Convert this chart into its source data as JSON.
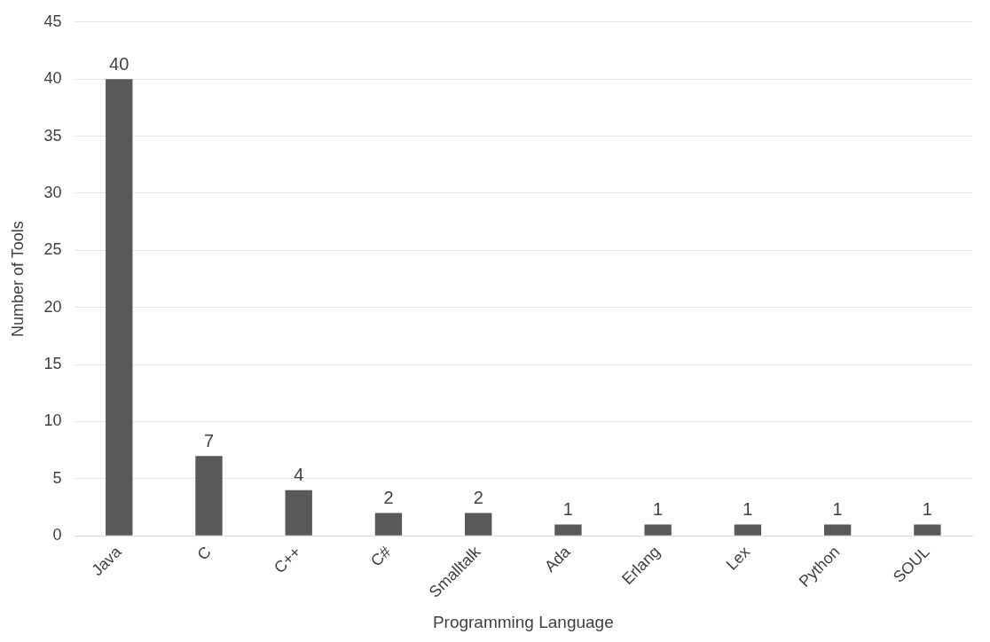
{
  "chart_data": {
    "type": "bar",
    "xlabel": "Programming Language",
    "ylabel": "Number of Tools",
    "categories": [
      "Java",
      "C",
      "C++",
      "C#",
      "Smalltalk",
      "Ada",
      "Erlang",
      "Lex",
      "Python",
      "SOUL"
    ],
    "values": [
      40,
      7,
      4,
      2,
      2,
      1,
      1,
      1,
      1,
      1
    ],
    "color": "#595959",
    "ylim": [
      0,
      45
    ],
    "yticks": [
      0,
      5,
      10,
      15,
      20,
      25,
      30,
      35,
      40,
      45
    ],
    "grid": "y",
    "data_labels": true,
    "legend": false
  }
}
